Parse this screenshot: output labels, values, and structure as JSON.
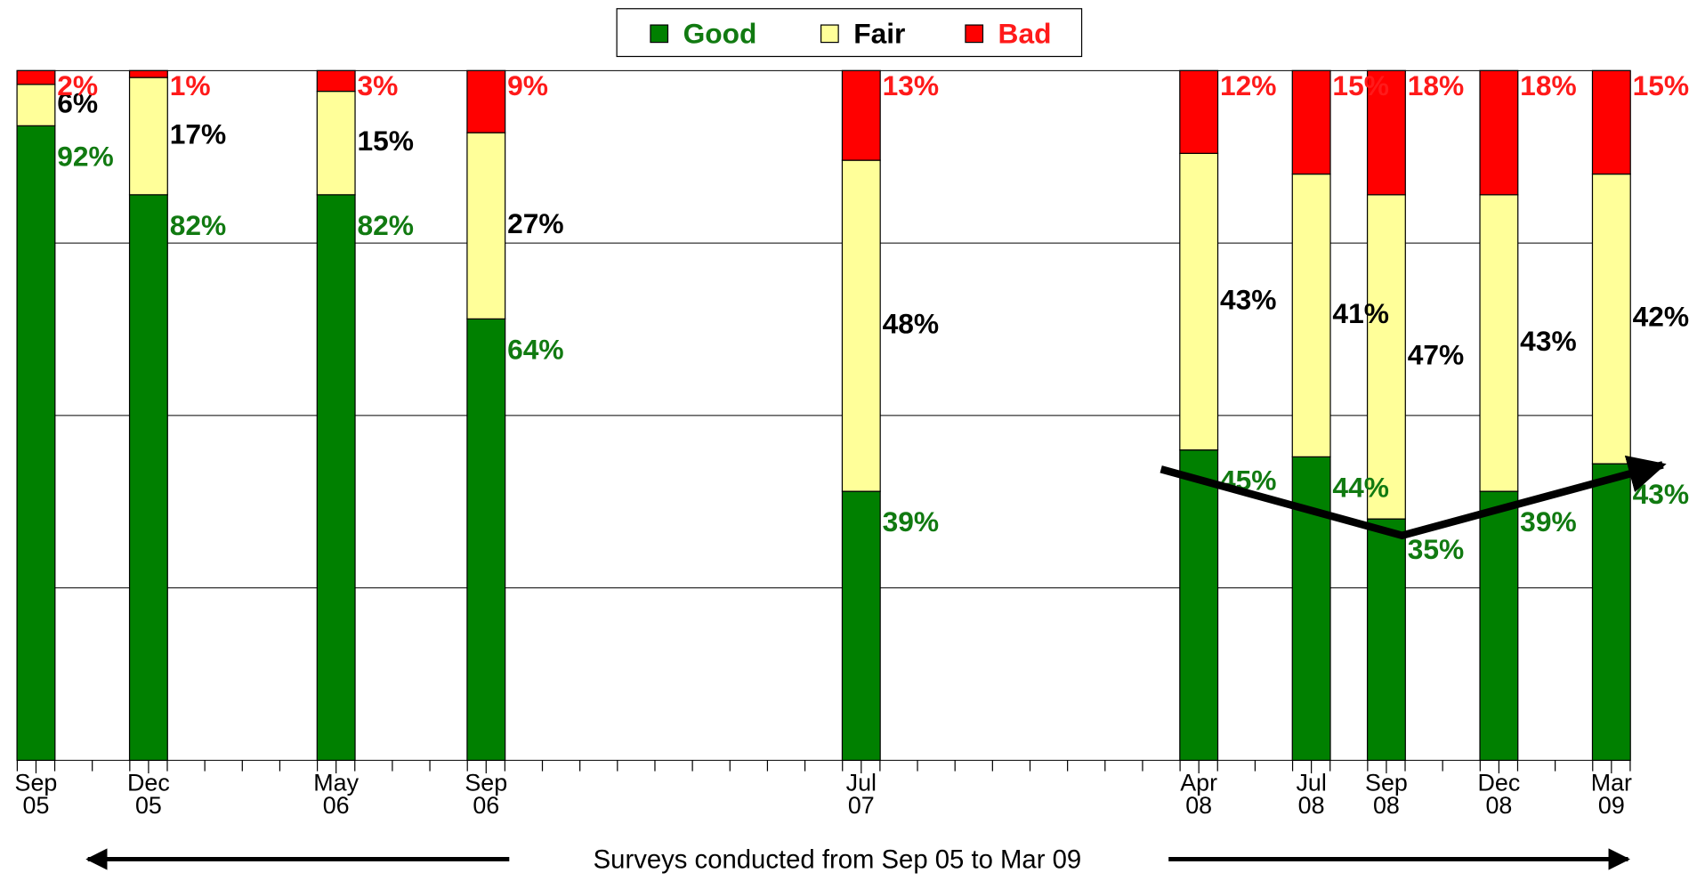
{
  "chart_data": {
    "type": "stacked-bar",
    "x": [
      "2005-09",
      "2005-12",
      "2006-05",
      "2006-09",
      "2007-07",
      "2008-04",
      "2008-07",
      "2008-09",
      "2008-12",
      "2009-03"
    ],
    "xticks": [
      {
        "value": "2005-09",
        "label": "Sep 05"
      },
      {
        "value": "2005-12",
        "label": "Dec 05"
      },
      {
        "value": "2006-05",
        "label": "May 06"
      },
      {
        "value": "2006-09",
        "label": "Sep 06"
      },
      {
        "value": "2007-07",
        "label": "Jul 07"
      },
      {
        "value": "2008-04",
        "label": "Apr 08"
      },
      {
        "value": "2008-07",
        "label": "Jul 08"
      },
      {
        "value": "2008-09",
        "label": "Sep 08"
      },
      {
        "value": "2008-12",
        "label": "Dec 08"
      },
      {
        "value": "2009-03",
        "label": "Mar 09"
      }
    ],
    "xlim": [
      "2005-09",
      "2009-03"
    ],
    "ylim": [
      0,
      100
    ],
    "yticks": [
      0,
      25,
      50,
      75,
      100
    ],
    "grid": true,
    "xlabel": "Surveys conducted from Sep 05 to Mar 09",
    "series": [
      {
        "name": "Good",
        "color": "#008000",
        "label_color": "#117a11",
        "values": [
          92,
          82,
          82,
          64,
          39,
          45,
          44,
          35,
          39,
          43
        ],
        "value_labels": [
          "92%",
          "82%",
          "82%",
          "64%",
          "39%",
          "45%",
          "44%",
          "35%",
          "39%",
          "43%"
        ]
      },
      {
        "name": "Fair",
        "color": "#ffff99",
        "label_color": "#000000",
        "values": [
          6,
          17,
          15,
          27,
          48,
          43,
          41,
          47,
          43,
          42
        ],
        "value_labels": [
          "6%",
          "17%",
          "15%",
          "27%",
          "48%",
          "43%",
          "41%",
          "47%",
          "43%",
          "42%"
        ]
      },
      {
        "name": "Bad",
        "color": "#ff0000",
        "label_color": "#ff1a1a",
        "values": [
          2,
          1,
          3,
          9,
          13,
          12,
          15,
          18,
          18,
          15
        ],
        "value_labels": [
          "2%",
          "1%",
          "3%",
          "9%",
          "13%",
          "12%",
          "15%",
          "18%",
          "18%",
          "15%"
        ]
      }
    ]
  }
}
